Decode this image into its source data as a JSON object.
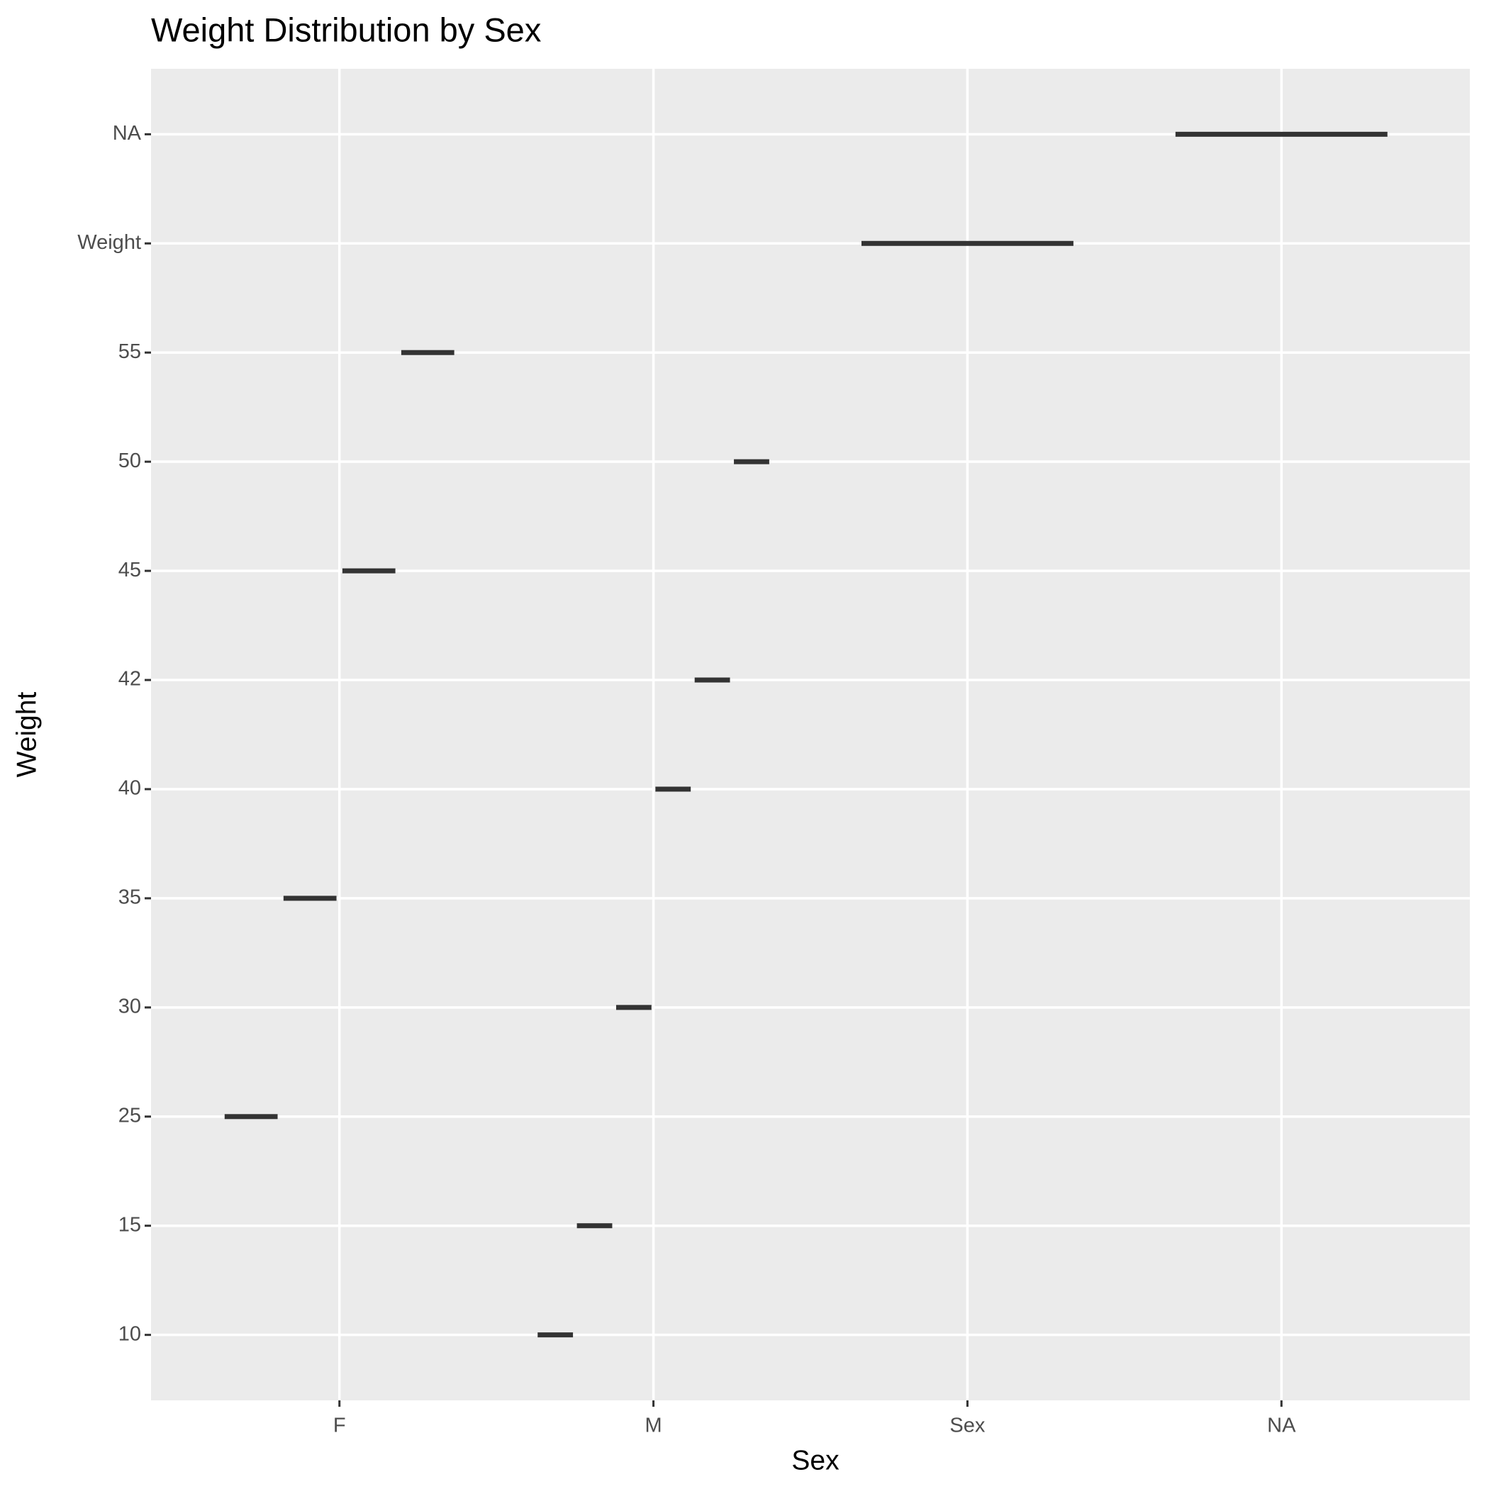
{
  "chart_data": {
    "type": "boxplot",
    "title": "Weight Distribution by Sex",
    "x_label": "Sex",
    "y_label": "Weight",
    "categories": [
      "F",
      "M",
      "Sex",
      "NA"
    ],
    "yticks": [
      "10",
      "15",
      "25",
      "30",
      "35",
      "40",
      "42",
      "45",
      "50",
      "55",
      "Weight",
      "NA"
    ],
    "levels": [
      [
        "25",
        "35",
        "45",
        "55"
      ],
      [
        "10",
        "15",
        "30",
        "40",
        "42",
        "50"
      ],
      [
        "Weight"
      ],
      [
        "NA"
      ]
    ],
    "color": "#333333",
    "grid": true
  }
}
